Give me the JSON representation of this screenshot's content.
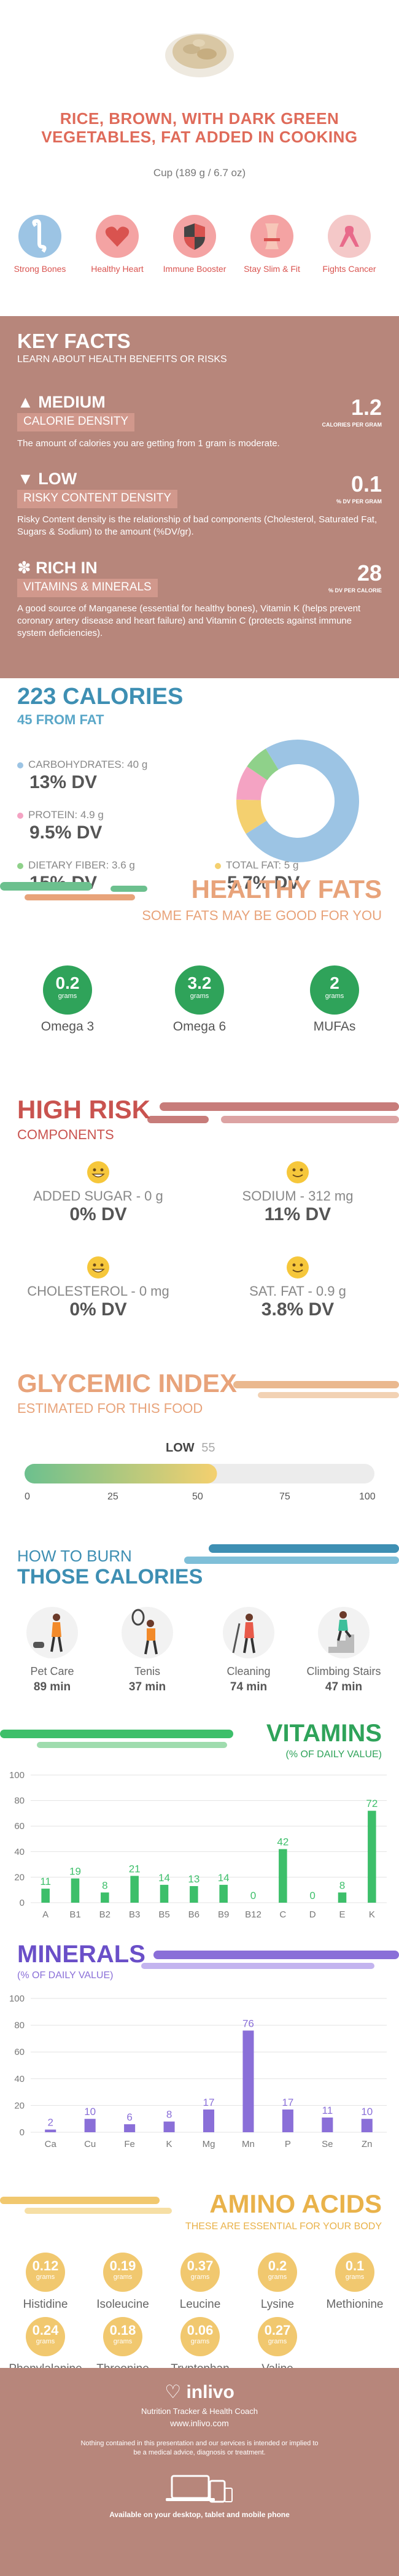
{
  "header": {
    "title": "RICE, BROWN, WITH DARK GREEN VEGETABLES, FAT ADDED IN COOKING",
    "serving": "Cup (189 g / 6.7 oz)"
  },
  "benefits": [
    {
      "label": "Strong Bones",
      "icon": "bone-icon",
      "color": "#f4a3a3"
    },
    {
      "label": "Healthy Heart",
      "icon": "heart-icon",
      "color": "#f4a3a3"
    },
    {
      "label": "Immune Booster",
      "icon": "shield-icon",
      "color": "#f4a3a3"
    },
    {
      "label": "Stay Slim & Fit",
      "icon": "waist-icon",
      "color": "#f4a3a3"
    },
    {
      "label": "Fights Cancer",
      "icon": "ribbon-icon",
      "color": "#f4a3a3"
    }
  ],
  "key_facts": {
    "title": "KEY FACTS",
    "subtitle": "LEARN ABOUT HEALTH BENEFITS OR RISKS",
    "facts": [
      {
        "level": "MEDIUM",
        "band": "CALORIE DENSITY",
        "value": "1.2",
        "unit": "CALORIES PER GRAM",
        "desc": "The amount of calories you are getting from 1 gram is moderate."
      },
      {
        "level": "LOW",
        "band": "RISKY CONTENT DENSITY",
        "value": "0.1",
        "unit": "% DV PER GRAM",
        "desc": "Risky Content density is the relationship of bad components (Cholesterol, Saturated Fat, Sugars & Sodium) to the amount (%DV/gr)."
      },
      {
        "level": "RICH  IN",
        "band": "VITAMINS & MINERALS",
        "value": "28",
        "unit": "% DV PER CALORIE",
        "desc": "A good source of Manganese (essential for healthy bones), Vitamin K (helps prevent coronary artery disease and heart failure) and Vitamin C (protects against immune system deficiencies)."
      }
    ]
  },
  "calories": {
    "title": "223 CALORIES",
    "from_fat": "45 FROM FAT",
    "carbs_label": "CARBOHYDRATES: 40 g",
    "carbs_dv": "13% DV",
    "protein_label": "PROTEIN: 4.9 g",
    "protein_dv": "9.5% DV",
    "fiber_label": "DIETARY FIBER: 3.6 g",
    "fiber_dv": "15% DV",
    "fat_label": "TOTAL FAT: 5 g",
    "fat_dv": "5.7% DV",
    "colors": {
      "carbs": "#9cc4e4",
      "protein": "#f4a3c3",
      "fiber": "#8fd18a",
      "fat": "#f4d06f"
    },
    "donut": [
      {
        "name": "carbs",
        "value": 40
      },
      {
        "name": "fat",
        "value": 5
      },
      {
        "name": "protein",
        "value": 4.9
      },
      {
        "name": "fiber",
        "value": 3.6
      }
    ]
  },
  "healthy_fats": {
    "title": "HEALTHY FATS",
    "subtitle": "SOME FATS MAY BE GOOD FOR YOU",
    "items": [
      {
        "value": "0.2",
        "unit": "grams",
        "label": "Omega 3"
      },
      {
        "value": "3.2",
        "unit": "grams",
        "label": "Omega 6"
      },
      {
        "value": "2",
        "unit": "grams",
        "label": "MUFAs"
      }
    ]
  },
  "high_risk": {
    "title": "HIGH RISK",
    "subtitle": "COMPONENTS",
    "items": [
      {
        "label": "ADDED SUGAR - 0 g",
        "dv": "0% DV"
      },
      {
        "label": "SODIUM - 312 mg",
        "dv": "11% DV"
      },
      {
        "label": "CHOLESTEROL - 0 mg",
        "dv": "0% DV"
      },
      {
        "label": "SAT. FAT - 0.9 g",
        "dv": "3.8% DV"
      }
    ]
  },
  "glycemic": {
    "title": "GLYCEMIC INDEX",
    "subtitle": "ESTIMATED FOR THIS FOOD",
    "level": "LOW",
    "value": "55",
    "value_num": 55,
    "ticks": [
      "0",
      "25",
      "50",
      "75",
      "100"
    ]
  },
  "burn": {
    "title1": "HOW TO BURN",
    "title2": "THOSE CALORIES",
    "activities": [
      {
        "label": "Pet Care",
        "minutes": "89 min"
      },
      {
        "label": "Tenis",
        "minutes": "37 min"
      },
      {
        "label": "Cleaning",
        "minutes": "74 min"
      },
      {
        "label": "Climbing Stairs",
        "minutes": "47 min"
      }
    ]
  },
  "vitamins": {
    "title": "VITAMINS",
    "subtitle": "(% OF DAILY VALUE)",
    "chart_data": {
      "type": "bar",
      "categories": [
        "A",
        "B1",
        "B2",
        "B3",
        "B5",
        "B6",
        "B9",
        "B12",
        "C",
        "D",
        "E",
        "K"
      ],
      "values": [
        11,
        19,
        8,
        21,
        14,
        13,
        14,
        0,
        42,
        0,
        8,
        72
      ],
      "ylim": [
        0,
        100
      ],
      "yticks": [
        "0",
        "20",
        "40",
        "60",
        "80",
        "100"
      ],
      "color": "#3dbf6a"
    }
  },
  "minerals": {
    "title": "MINERALS",
    "subtitle": "(% OF DAILY VALUE)",
    "chart_data": {
      "type": "bar",
      "categories": [
        "Ca",
        "Cu",
        "Fe",
        "K",
        "Mg",
        "Mn",
        "P",
        "Se",
        "Zn"
      ],
      "values": [
        2,
        10,
        6,
        8,
        17,
        76,
        17,
        11,
        10
      ],
      "ylim": [
        0,
        100
      ],
      "yticks": [
        "0",
        "20",
        "40",
        "60",
        "80",
        "100"
      ],
      "color": "#8a6fd8"
    }
  },
  "amino": {
    "title": "AMINO ACIDS",
    "subtitle": "THESE ARE ESSENTIAL FOR YOUR BODY",
    "items": [
      {
        "value": "0.12",
        "unit": "grams",
        "label": "Histidine"
      },
      {
        "value": "0.19",
        "unit": "grams",
        "label": "Isoleucine"
      },
      {
        "value": "0.37",
        "unit": "grams",
        "label": "Leucine"
      },
      {
        "value": "0.2",
        "unit": "grams",
        "label": "Lysine"
      },
      {
        "value": "0.1",
        "unit": "grams",
        "label": "Methionine"
      },
      {
        "value": "0.24",
        "unit": "grams",
        "label": "Phenylalanine"
      },
      {
        "value": "0.18",
        "unit": "grams",
        "label": "Threonine"
      },
      {
        "value": "0.06",
        "unit": "grams",
        "label": "Tryptophan"
      },
      {
        "value": "0.27",
        "unit": "grams",
        "label": "Valine"
      }
    ]
  },
  "footer": {
    "brand": "inlivo",
    "tagline": "Nutrition Tracker & Health Coach",
    "url": "www.inlivo.com",
    "disclaimer": "Nothing contained in this presentation and our services is intended or implied to be a medical advice, diagnosis or treatment.",
    "available": "Available on your desktop, tablet and mobile phone"
  }
}
